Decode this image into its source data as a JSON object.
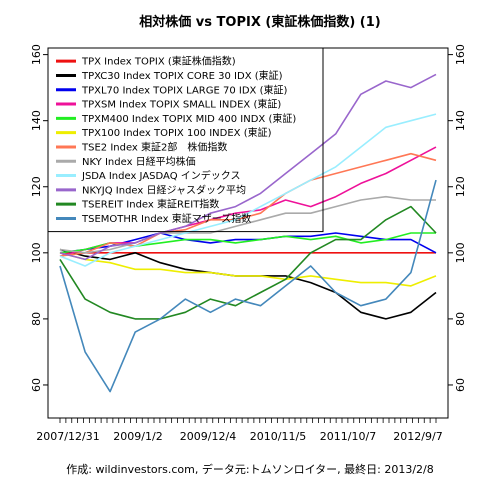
{
  "chart_data": {
    "type": "line",
    "title": "相対株価 vs TOPIX (東証株価指数) (1)",
    "caption": "作成: wildinvestors.com, データ元:トムソンロイター, 最終日: 2013/2/8",
    "x_tick_labels": [
      "2007/12/31",
      "2009/1/2",
      "2009/12/4",
      "2010/11/5",
      "2011/10/7",
      "2012/9/7"
    ],
    "ylim": [
      50,
      162
    ],
    "y_ticks": [
      60,
      80,
      100,
      120,
      140,
      160
    ],
    "y_ticks_right": true,
    "grid": false,
    "legend_position": "top-left",
    "x_points": [
      0,
      4,
      8,
      12,
      16,
      20,
      24,
      28,
      32,
      36,
      40,
      44,
      48,
      52,
      56,
      60
    ],
    "series": [
      {
        "name": "TPX Index TOPIX (東証株価指数)",
        "color": "#ee1111",
        "values": [
          100,
          100,
          100,
          100,
          100,
          100,
          100,
          100,
          100,
          100,
          100,
          100,
          100,
          100,
          100,
          100
        ]
      },
      {
        "name": "TPXC30 Index TOPIX CORE 30 IDX (東証)",
        "color": "#000000",
        "values": [
          101,
          99,
          98,
          100,
          97,
          95,
          94,
          93,
          93,
          93,
          91,
          88,
          82,
          80,
          82,
          88
        ]
      },
      {
        "name": "TPXL70 Index TOPIX LARGE 70 IDX (東証)",
        "color": "#0000ee",
        "values": [
          100,
          101,
          102,
          104,
          106,
          104,
          103,
          104,
          104,
          105,
          105,
          106,
          105,
          104,
          104,
          100
        ]
      },
      {
        "name": "TPXSM Index TOPIX SMALL INDEX (東証)",
        "color": "#ee1199",
        "values": [
          99,
          101,
          103,
          103,
          106,
          108,
          110,
          112,
          113,
          116,
          114,
          117,
          121,
          124,
          128,
          132
        ]
      },
      {
        "name": "TPXM400 Index TOPIX MID 400 INDX (東証)",
        "color": "#22ee22",
        "values": [
          100,
          101,
          103,
          102,
          103,
          104,
          104,
          103,
          104,
          105,
          104,
          105,
          103,
          104,
          106,
          106
        ]
      },
      {
        "name": "TPX100 Index TOPIX 100 INDEX (東証)",
        "color": "#eeee00",
        "values": [
          100,
          98,
          97,
          95,
          95,
          94,
          94,
          93,
          93,
          92,
          93,
          92,
          91,
          91,
          90,
          93
        ]
      },
      {
        "name": "TSE2 Index 東証2部　株価指数",
        "color": "#ff7755",
        "values": [
          99,
          100,
          103,
          102,
          106,
          107,
          110,
          110,
          112,
          118,
          122,
          124,
          126,
          128,
          130,
          128
        ]
      },
      {
        "name": "NKY Index 日経平均株価",
        "color": "#aaaaaa",
        "values": [
          101,
          100,
          101,
          103,
          106,
          106,
          106,
          108,
          110,
          112,
          112,
          114,
          116,
          117,
          116,
          116
        ]
      },
      {
        "name": "JSDA Index JASDAQ インデックス",
        "color": "#99eeff",
        "values": [
          99,
          96,
          100,
          102,
          104,
          106,
          108,
          110,
          114,
          118,
          122,
          126,
          132,
          138,
          140,
          142
        ]
      },
      {
        "name": "NKYJQ Index 日経ジャスダック平均",
        "color": "#9966cc",
        "values": [
          100,
          98,
          102,
          103,
          106,
          108,
          112,
          114,
          118,
          124,
          130,
          136,
          148,
          152,
          150,
          154
        ]
      },
      {
        "name": "TSEREIT Index 東証REIT指数",
        "color": "#228822",
        "values": [
          98,
          86,
          82,
          80,
          80,
          82,
          86,
          84,
          88,
          92,
          100,
          104,
          104,
          110,
          114,
          106
        ]
      },
      {
        "name": "TSEMOTHR Index 東証マザーズ指数",
        "color": "#4488bb",
        "values": [
          96,
          70,
          58,
          76,
          80,
          86,
          82,
          86,
          84,
          90,
          96,
          88,
          84,
          86,
          94,
          122
        ]
      }
    ]
  }
}
